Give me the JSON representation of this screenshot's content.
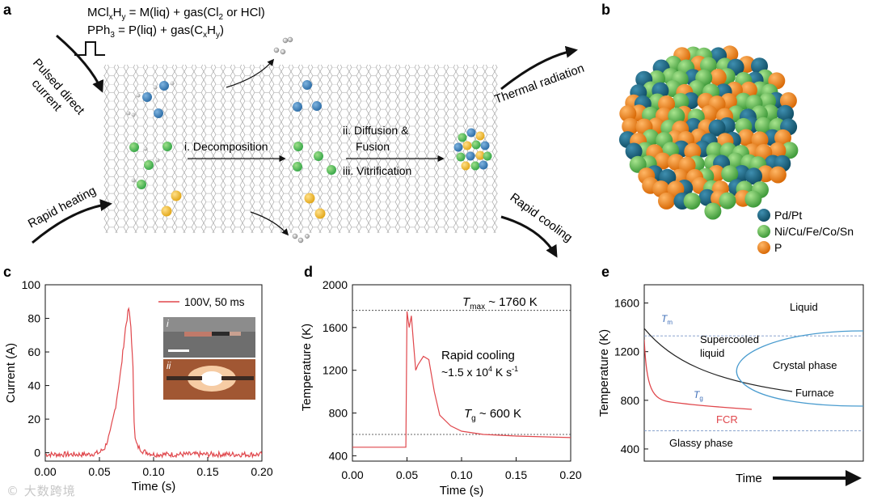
{
  "panel_letters": {
    "a": "a",
    "b": "b",
    "c": "c",
    "d": "d",
    "e": "e"
  },
  "panel_a": {
    "eq1": {
      "p1": "MCl",
      "s1": "x",
      "p2": "H",
      "s2": "y",
      "p3": " = M(liq) + gas(Cl",
      "s3": "2",
      "p4": " or HCl)"
    },
    "eq2": {
      "p1": "PPh",
      "s1": "3",
      "p2": " = P(liq) + gas(C",
      "s2": "x",
      "p3": "H",
      "s3": "y",
      "p4": ")"
    },
    "pulsed_line1": "Pulsed direct",
    "pulsed_line2": "current",
    "rapid_heating": "Rapid heating",
    "decomposition": "i. Decomposition",
    "diffusion_line1": "ii. Diffusion &",
    "diffusion_line2": "Fusion",
    "vitrification": "iii. Vitrification",
    "thermal_radiation": "Thermal radiation",
    "rapid_cooling": "Rapid cooling",
    "colors": {
      "blue": "#2f6fa8",
      "green": "#3aa84a",
      "yellow": "#e3a91d",
      "grey": "#9a9a9a"
    }
  },
  "panel_b": {
    "legend": [
      {
        "label": "Pd/Pt",
        "color": "#1d6b8a"
      },
      {
        "label": "Ni/Cu/Fe/Co/Sn",
        "color": "#6ec25b"
      },
      {
        "label": "P",
        "color": "#f08a1c"
      }
    ]
  },
  "panel_c": {
    "chart_data": {
      "type": "line",
      "ylabel": "Current (A)",
      "xlabel": "Time (s)",
      "xlim": [
        0.0,
        0.2
      ],
      "ylim": [
        -5,
        100
      ],
      "xticks": [
        "0.00",
        "0.05",
        "0.10",
        "0.15",
        "0.20"
      ],
      "yticks": [
        "0",
        "20",
        "40",
        "60",
        "80",
        "100"
      ],
      "legend": "100V, 50 ms",
      "inset_labels": [
        "i",
        "ii"
      ],
      "series": [
        {
          "name": "100V, 50 ms",
          "x": [
            0.0,
            0.02,
            0.04,
            0.05,
            0.055,
            0.06,
            0.065,
            0.07,
            0.074,
            0.077,
            0.079,
            0.081,
            0.082,
            0.083,
            0.085,
            0.09,
            0.1,
            0.12,
            0.15,
            0.2
          ],
          "y": [
            -1,
            -1,
            -1,
            0,
            3,
            12,
            28,
            50,
            74,
            86,
            75,
            50,
            20,
            8,
            4,
            1,
            -1,
            -1,
            -1,
            -1
          ]
        }
      ]
    }
  },
  "panel_d": {
    "chart_data": {
      "type": "line",
      "ylabel": "Temperature (K)",
      "xlabel": "Time (s)",
      "xlim": [
        0.0,
        0.2
      ],
      "ylim": [
        350,
        2000
      ],
      "xticks": [
        "0.00",
        "0.05",
        "0.10",
        "0.15",
        "0.20"
      ],
      "yticks": [
        "400",
        "800",
        "1200",
        "1600",
        "2000"
      ],
      "tmax_line": 1760,
      "tg_line": 600,
      "series": [
        {
          "name": "",
          "x": [
            0.0,
            0.049,
            0.05,
            0.052,
            0.054,
            0.056,
            0.058,
            0.06,
            0.065,
            0.07,
            0.075,
            0.08,
            0.09,
            0.1,
            0.12,
            0.15,
            0.2
          ],
          "y": [
            480,
            480,
            1750,
            1600,
            1710,
            1450,
            1200,
            1250,
            1330,
            1300,
            1000,
            780,
            680,
            630,
            600,
            585,
            570
          ]
        }
      ]
    },
    "tmax_label": {
      "T": "T",
      "sub": "max",
      "rest": " ~ 1760 K"
    },
    "tg_label": {
      "T": "T",
      "sub": "g",
      "rest": " ~ 600 K"
    },
    "rapid_line1": "Rapid cooling",
    "rapid_line2": {
      "a": "~1.5 x 10",
      "sup1": "4",
      "b": " K s",
      "sup2": "-1"
    }
  },
  "panel_e": {
    "chart_data": {
      "type": "line",
      "ylabel": "Temperature (K)",
      "xlabel": "Time",
      "ylim": [
        300,
        1750
      ],
      "yticks": [
        "400",
        "800",
        "1200",
        "1600"
      ],
      "tm_line": 1330,
      "tg_line": 550
    },
    "tm_label": {
      "T": "T",
      "sub": "m"
    },
    "tg_label": {
      "T": "T",
      "sub": "g"
    },
    "liquid": "Liquid",
    "supercooled_line1": "Supercooled",
    "supercooled_line2": "liquid",
    "crystal": "Crystal phase",
    "furnace": "Furnace",
    "fcr": "FCR",
    "glassy": "Glassy phase"
  },
  "watermark": "© 大数跨境"
}
